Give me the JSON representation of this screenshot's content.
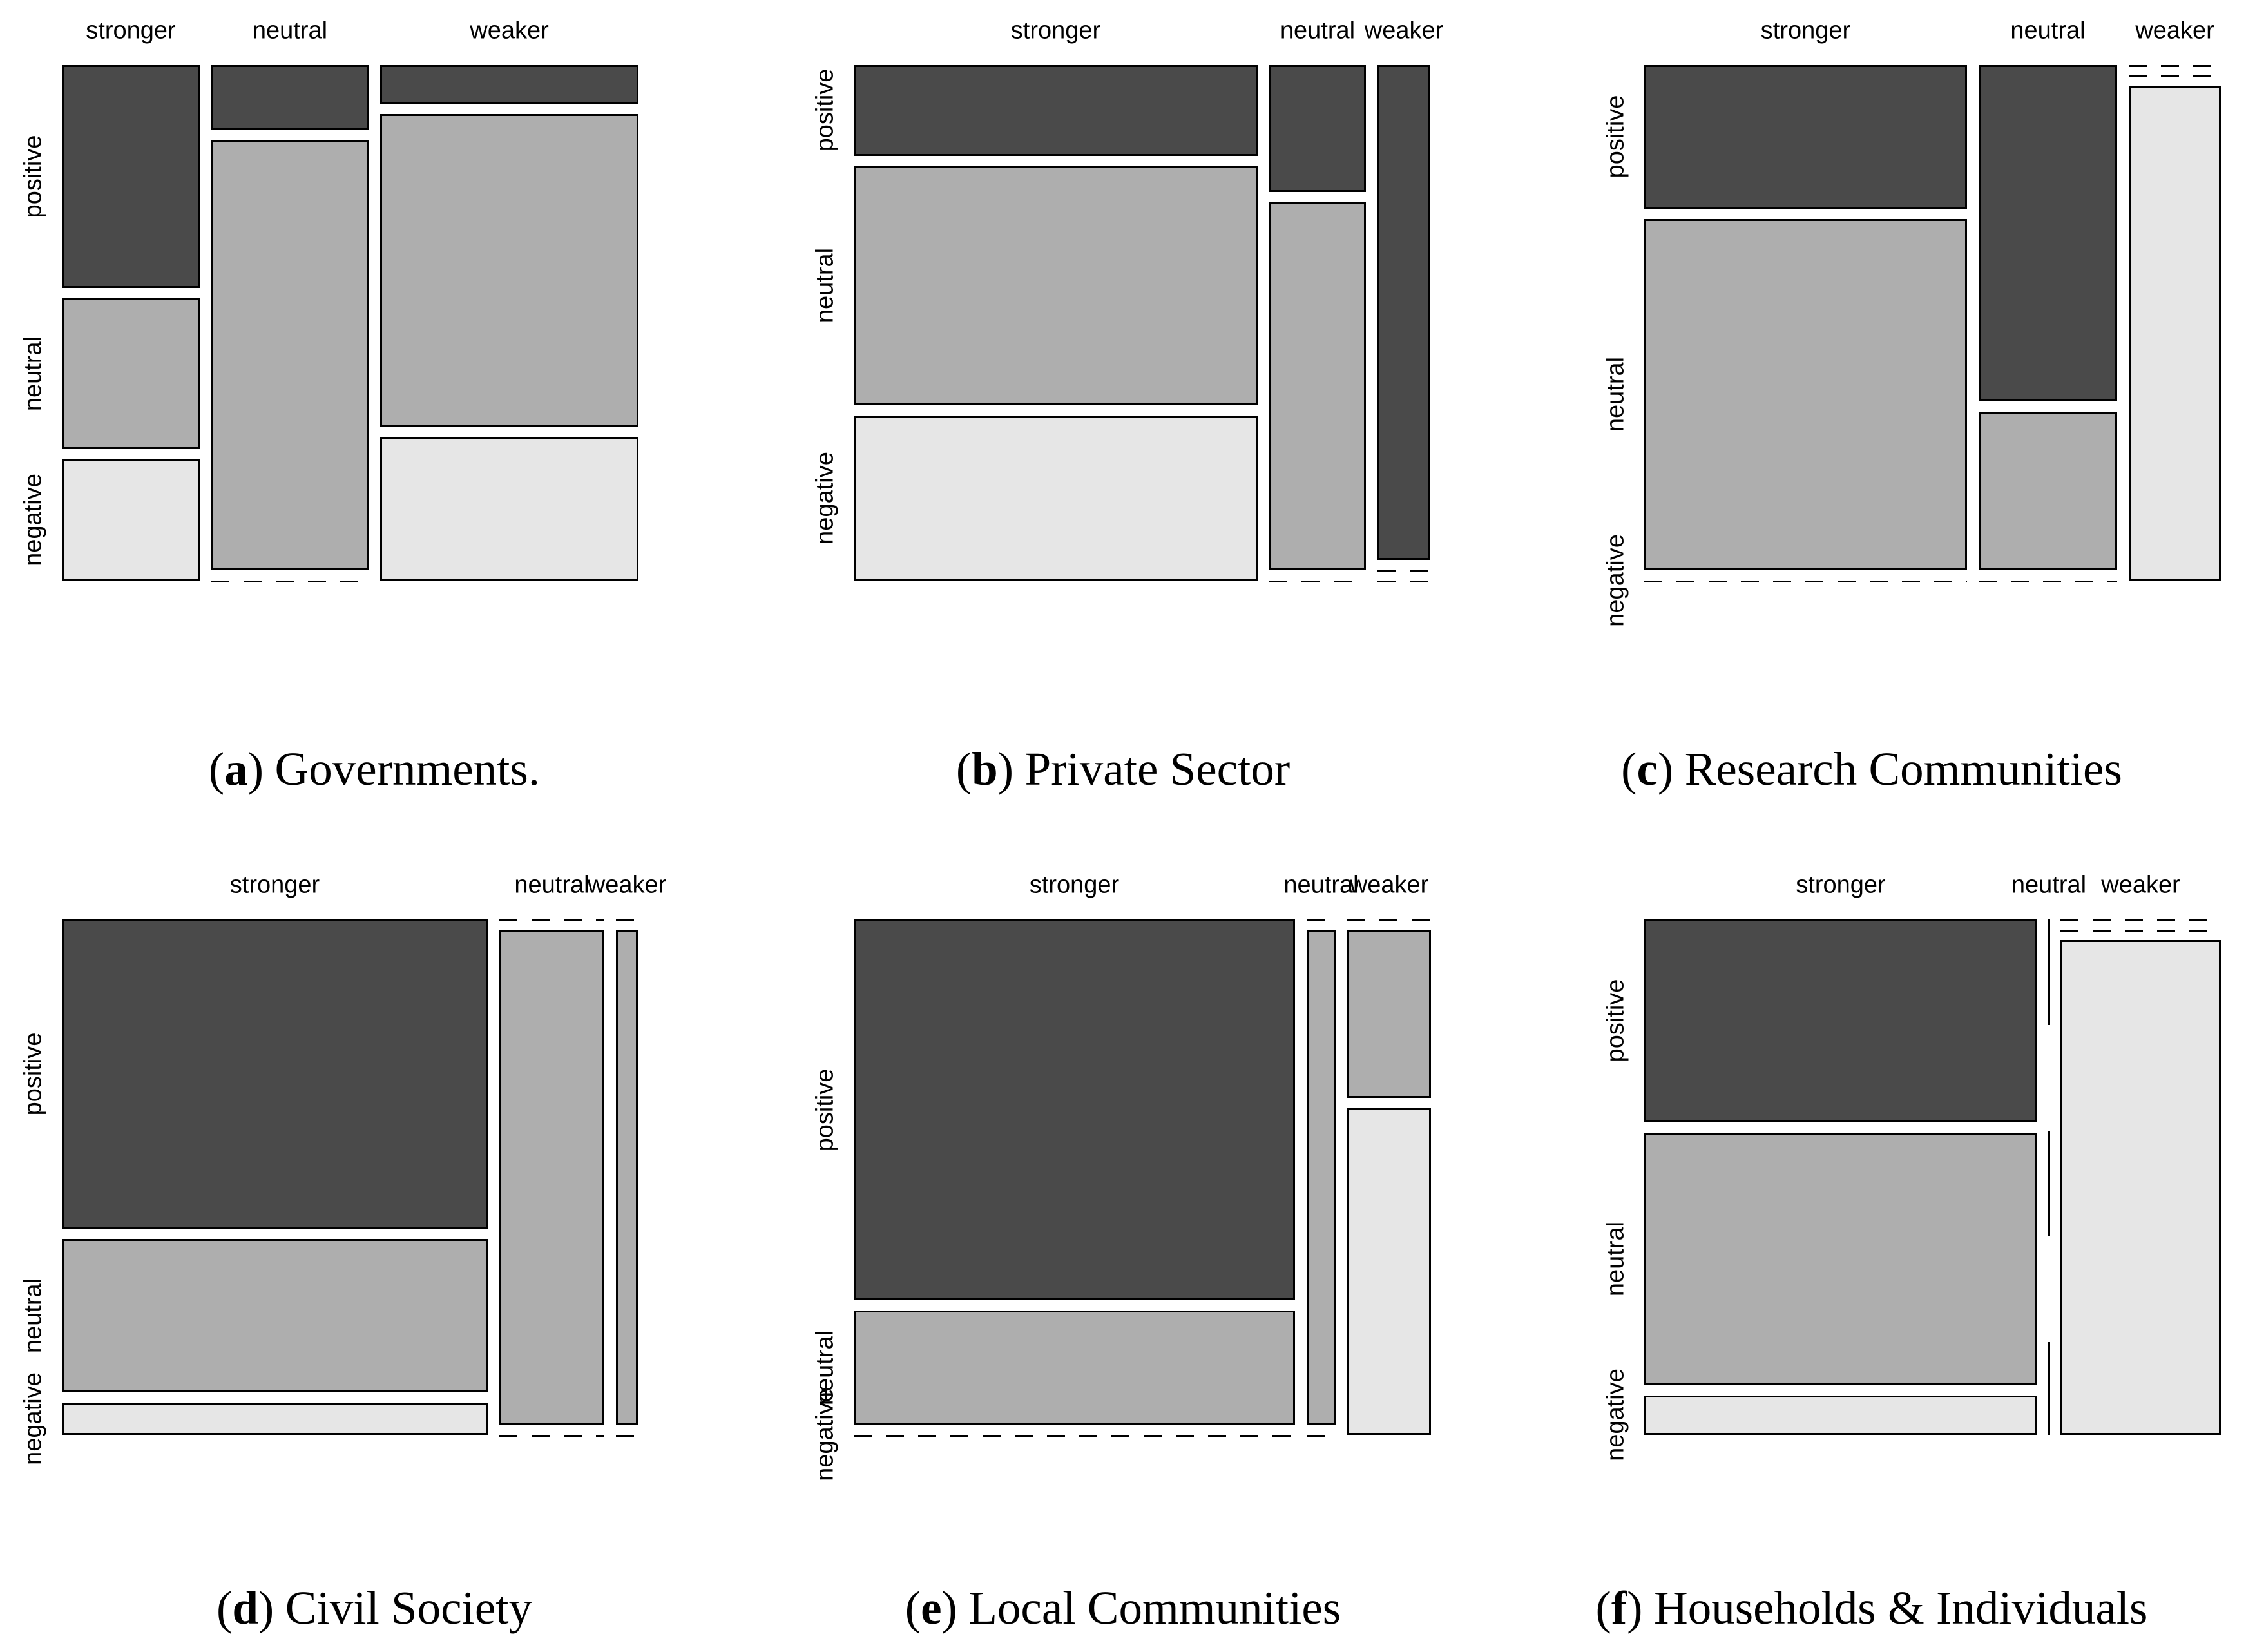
{
  "page": {
    "background": "#ffffff"
  },
  "labels": {
    "open_paren": "(",
    "close_paren": ")",
    "x_categories": [
      "stronger",
      "neutral",
      "weaker"
    ],
    "y_categories": [
      "positive",
      "neutral",
      "negative"
    ]
  },
  "colors": {
    "positive": "#4a4a4a",
    "neutral": "#aeaeae",
    "negative": "#e6e6e6",
    "border": "#000000",
    "zero_dash": "#000000"
  },
  "chart_data": [
    {
      "type": "mosaic",
      "panel": "a",
      "caption": "Governments.",
      "x_categories": [
        "stronger",
        "neutral",
        "weaker"
      ],
      "y_categories": [
        "positive",
        "neutral",
        "negative"
      ],
      "columns": [
        {
          "label": "stronger",
          "width": 0.249,
          "cells": [
            {
              "row": "positive",
              "frac": 0.45
            },
            {
              "row": "neutral",
              "frac": 0.305
            },
            {
              "row": "negative",
              "frac": 0.245
            }
          ]
        },
        {
          "label": "neutral",
          "width": 0.284,
          "cells": [
            {
              "row": "positive",
              "frac": 0.13
            },
            {
              "row": "neutral",
              "frac": 0.87
            },
            {
              "row": "negative",
              "frac": 0
            }
          ]
        },
        {
          "label": "weaker",
          "width": 0.467,
          "cells": [
            {
              "row": "positive",
              "frac": 0.078
            },
            {
              "row": "neutral",
              "frac": 0.632
            },
            {
              "row": "negative",
              "frac": 0.29
            }
          ]
        }
      ]
    },
    {
      "type": "mosaic",
      "panel": "b",
      "caption": "Private Sector",
      "x_categories": [
        "stronger",
        "neutral",
        "weaker"
      ],
      "y_categories": [
        "positive",
        "neutral",
        "negative"
      ],
      "columns": [
        {
          "label": "stronger",
          "width": 0.73,
          "cells": [
            {
              "row": "positive",
              "frac": 0.183
            },
            {
              "row": "neutral",
              "frac": 0.483
            },
            {
              "row": "negative",
              "frac": 0.334
            }
          ]
        },
        {
          "label": "neutral",
          "width": 0.175,
          "cells": [
            {
              "row": "positive",
              "frac": 0.256
            },
            {
              "row": "neutral",
              "frac": 0.744
            },
            {
              "row": "negative",
              "frac": 0
            }
          ]
        },
        {
          "label": "weaker",
          "width": 0.095,
          "cells": [
            {
              "row": "positive",
              "frac": 1
            },
            {
              "row": "neutral",
              "frac": 0
            },
            {
              "row": "negative",
              "frac": 0
            }
          ]
        }
      ]
    },
    {
      "type": "mosaic",
      "panel": "c",
      "caption": "Research Communities",
      "x_categories": [
        "stronger",
        "neutral",
        "weaker"
      ],
      "y_categories": [
        "positive",
        "neutral",
        "negative"
      ],
      "columns": [
        {
          "label": "stronger",
          "width": 0.583,
          "cells": [
            {
              "row": "positive",
              "frac": 0.29
            },
            {
              "row": "neutral",
              "frac": 0.71
            },
            {
              "row": "negative",
              "frac": 0
            }
          ]
        },
        {
          "label": "neutral",
          "width": 0.25,
          "cells": [
            {
              "row": "positive",
              "frac": 0.68
            },
            {
              "row": "neutral",
              "frac": 0.32
            },
            {
              "row": "negative",
              "frac": 0
            }
          ]
        },
        {
          "label": "weaker",
          "width": 0.167,
          "cells": [
            {
              "row": "positive",
              "frac": 0
            },
            {
              "row": "neutral",
              "frac": 0
            },
            {
              "row": "negative",
              "frac": 1
            }
          ]
        }
      ]
    },
    {
      "type": "mosaic",
      "panel": "d",
      "caption": "Civil Society",
      "x_categories": [
        "stronger",
        "neutral",
        "weaker"
      ],
      "y_categories": [
        "positive",
        "neutral",
        "negative"
      ],
      "columns": [
        {
          "label": "stronger",
          "width": 0.77,
          "cells": [
            {
              "row": "positive",
              "frac": 0.625
            },
            {
              "row": "neutral",
              "frac": 0.31
            },
            {
              "row": "negative",
              "frac": 0.065
            }
          ]
        },
        {
          "label": "neutral",
          "width": 0.19,
          "cells": [
            {
              "row": "positive",
              "frac": 0
            },
            {
              "row": "neutral",
              "frac": 1
            },
            {
              "row": "negative",
              "frac": 0
            }
          ]
        },
        {
          "label": "weaker",
          "width": 0.04,
          "cells": [
            {
              "row": "positive",
              "frac": 0
            },
            {
              "row": "neutral",
              "frac": 1
            },
            {
              "row": "negative",
              "frac": 0
            }
          ]
        }
      ]
    },
    {
      "type": "mosaic",
      "panel": "e",
      "caption": "Local Communities",
      "x_categories": [
        "stronger",
        "neutral",
        "weaker"
      ],
      "y_categories": [
        "positive",
        "neutral",
        "negative"
      ],
      "columns": [
        {
          "label": "stronger",
          "width": 0.797,
          "cells": [
            {
              "row": "positive",
              "frac": 0.77
            },
            {
              "row": "neutral",
              "frac": 0.23
            },
            {
              "row": "negative",
              "frac": 0
            }
          ]
        },
        {
          "label": "neutral",
          "width": 0.052,
          "cells": [
            {
              "row": "positive",
              "frac": 0
            },
            {
              "row": "neutral",
              "frac": 1
            },
            {
              "row": "negative",
              "frac": 0
            }
          ]
        },
        {
          "label": "weaker",
          "width": 0.151,
          "cells": [
            {
              "row": "positive",
              "frac": 0
            },
            {
              "row": "neutral",
              "frac": 0.34
            },
            {
              "row": "negative",
              "frac": 0.66
            }
          ]
        }
      ]
    },
    {
      "type": "mosaic",
      "panel": "f",
      "caption": "Households & Individuals",
      "x_categories": [
        "stronger",
        "neutral",
        "weaker"
      ],
      "y_categories": [
        "positive",
        "neutral",
        "negative"
      ],
      "columns": [
        {
          "label": "stronger",
          "width": 0.71,
          "cells": [
            {
              "row": "positive",
              "frac": 0.41
            },
            {
              "row": "neutral",
              "frac": 0.51
            },
            {
              "row": "negative",
              "frac": 0.08
            }
          ]
        },
        {
          "label": "neutral",
          "width": 0,
          "zero_width": true,
          "segments": [
            {
              "y": 0,
              "h": 0.205
            },
            {
              "y": 0.41,
              "h": 0.205
            },
            {
              "y": 0.82,
              "h": 0.18
            }
          ],
          "cells": [
            {
              "row": "positive",
              "frac": 0
            },
            {
              "row": "neutral",
              "frac": 0
            },
            {
              "row": "negative",
              "frac": 0
            }
          ]
        },
        {
          "label": "weaker",
          "width": 0.29,
          "cells": [
            {
              "row": "positive",
              "frac": 0
            },
            {
              "row": "neutral",
              "frac": 0
            },
            {
              "row": "negative",
              "frac": 1
            }
          ]
        }
      ]
    }
  ]
}
